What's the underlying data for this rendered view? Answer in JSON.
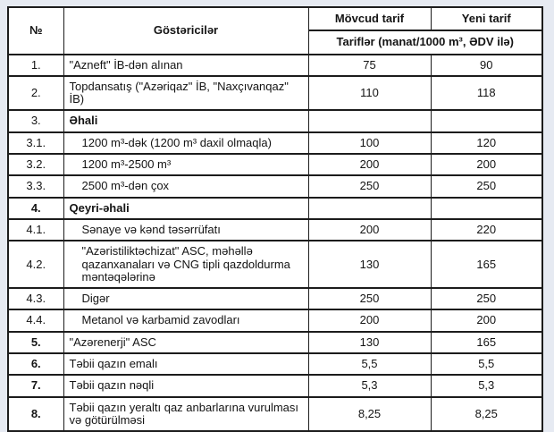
{
  "page": {
    "background_color": "#e6eaf2",
    "table_background": "#ffffff",
    "border_color": "#1c1c1c"
  },
  "chart_data": {
    "type": "table",
    "columns": [
      "№",
      "Göstəricilər",
      "Mövcud tarif",
      "Yeni tarif"
    ],
    "subheader": "Tariflər (manat/1000 m³, ƏDV ilə)",
    "rows": [
      {
        "no": "1.",
        "label": "\"Azneft\" İB-dən alınan",
        "current": "75",
        "new": "90"
      },
      {
        "no": "2.",
        "label": "Topdansatış (\"Azəriqaz\" İB, \"Naxçıvanqaz\" İB)",
        "current": "110",
        "new": "118"
      },
      {
        "no": "3.",
        "label": "Əhali",
        "current": "",
        "new": ""
      },
      {
        "no": "3.1.",
        "label": "1200 m³-dək (1200 m³ daxil olmaqla)",
        "current": "100",
        "new": "120"
      },
      {
        "no": "3.2.",
        "label": "1200 m³-2500 m³",
        "current": "200",
        "new": "200"
      },
      {
        "no": "3.3.",
        "label": "2500 m³-dən çox",
        "current": "250",
        "new": "250"
      },
      {
        "no": "4.",
        "label": "Qeyri-əhali",
        "current": "",
        "new": ""
      },
      {
        "no": "4.1.",
        "label": "Sənaye və kənd təsərrüfatı",
        "current": "200",
        "new": "220"
      },
      {
        "no": "4.2.",
        "label": "\"Azəristiliktəchizat\" ASC, məhəllə qazanxanaları və CNG tipli qazdoldurma məntəqələrinə",
        "current": "130",
        "new": "165"
      },
      {
        "no": "4.3.",
        "label": "Digər",
        "current": "250",
        "new": "250"
      },
      {
        "no": "4.4.",
        "label": "Metanol və karbamid zavodları",
        "current": "200",
        "new": "200"
      },
      {
        "no": "5.",
        "label": "\"Azərenerji\" ASC",
        "current": "130",
        "new": "165"
      },
      {
        "no": "6.",
        "label": "Təbii qazın emalı",
        "current": "5,5",
        "new": "5,5"
      },
      {
        "no": "7.",
        "label": "Təbii qazın nəqli",
        "current": "5,3",
        "new": "5,3"
      },
      {
        "no": "8.",
        "label": "Təbii qazın yeraltı qaz anbarlarına vurulması və götürülməsi",
        "current": "8,25",
        "new": "8,25"
      }
    ]
  }
}
